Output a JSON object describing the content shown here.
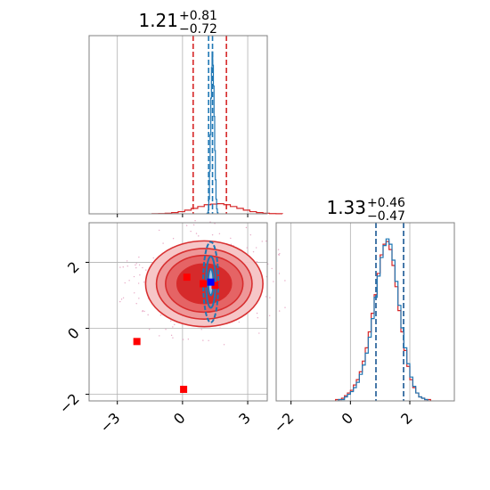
{
  "colors": {
    "blue": "#1f77b4",
    "red": "#d62728",
    "grid": "#b0b0b0",
    "axis": "#808080",
    "truth": "#0000ff",
    "marker": "#ff0000"
  },
  "chart_data": [
    {
      "type": "histogram",
      "panel": "top-left",
      "title": {
        "value": "1.21",
        "plus": "+0.81",
        "minus": "−0.72"
      },
      "xlim": [
        -4.3,
        3.9
      ],
      "xticks_values": [
        -3,
        0,
        3
      ],
      "grid": true,
      "series": [
        {
          "color": "#d62728",
          "bins": {
            "start": -1.4,
            "width": 0.3,
            "values": [
              0.01,
              0.02,
              0.05,
              0.1,
              0.18,
              0.3,
              0.45,
              0.6,
              0.75,
              0.8,
              0.83,
              0.75,
              0.6,
              0.45,
              0.3,
              0.18,
              0.1,
              0.05,
              0.02,
              0.01
            ]
          },
          "quantiles": [
            0.49,
            2.02
          ]
        },
        {
          "color": "#1f77b4",
          "bins": {
            "start": 1.12,
            "width": 0.03,
            "values": [
              0.02,
              0.08,
              0.3,
              1.2,
              3.5,
              6.5,
              9.5,
              12.0,
              13.3,
              12.2,
              10.5,
              8.0,
              5.2,
              2.8,
              1.2,
              0.4,
              0.1
            ]
          },
          "quantiles": [
            1.2,
            1.38
          ]
        }
      ]
    },
    {
      "type": "contour",
      "panel": "bottom-left",
      "xlim": [
        -4.3,
        3.9
      ],
      "ylim": [
        -2.2,
        3.2
      ],
      "xticks": [
        "−3",
        "0",
        "3"
      ],
      "xticks_values": [
        -3,
        0,
        3
      ],
      "yticks": [
        "−2",
        "0",
        "2"
      ],
      "yticks_values": [
        -2,
        0,
        2
      ],
      "grid": true,
      "red_contours": {
        "center": [
          1.0,
          1.35
        ],
        "radii": [
          [
            2.7,
            1.3
          ],
          [
            2.2,
            1.07
          ],
          [
            1.78,
            0.86
          ],
          [
            1.25,
            0.6
          ]
        ]
      },
      "blue_contours": {
        "center": [
          1.3,
          1.4
        ],
        "radii": [
          [
            0.35,
            1.22
          ],
          [
            0.22,
            0.78
          ],
          [
            0.12,
            0.4
          ]
        ]
      },
      "truth": [
        1.3,
        1.4
      ],
      "markers": [
        [
          0.2,
          1.55
        ],
        [
          0.95,
          1.35
        ],
        [
          1.5,
          1.3
        ],
        [
          -2.1,
          -0.4
        ],
        [
          0.05,
          -1.85
        ]
      ]
    },
    {
      "type": "histogram",
      "panel": "bottom-right",
      "title": {
        "value": "1.33",
        "plus": "+0.46",
        "minus": "−0.47"
      },
      "xlim": [
        -2.5,
        3.5
      ],
      "xticks": [
        "−2",
        "0",
        "2"
      ],
      "xticks_values": [
        -2,
        0,
        2
      ],
      "grid": true,
      "series": [
        {
          "color": "#d62728",
          "bins": {
            "start": -0.5,
            "width": 0.1,
            "values": [
              1,
              1,
              2,
              4,
              6,
              8,
              12,
              16,
              22,
              30,
              40,
              52,
              66,
              80,
              96,
              110,
              118,
              120,
              114,
              102,
              86,
              68,
              52,
              38,
              26,
              16,
              10,
              6,
              3,
              2,
              1,
              1
            ]
          },
          "quantiles": [
            0.86,
            1.79
          ]
        },
        {
          "color": "#1f77b4",
          "bins": {
            "start": -0.4,
            "width": 0.1,
            "values": [
              1,
              1,
              3,
              5,
              7,
              10,
              14,
              20,
              27,
              36,
              48,
              62,
              78,
              94,
              108,
              117,
              122,
              118,
              106,
              90,
              72,
              55,
              40,
              28,
              18,
              11,
              6,
              3,
              2,
              1
            ]
          },
          "quantiles": [
            0.86,
            1.79
          ]
        }
      ]
    }
  ]
}
